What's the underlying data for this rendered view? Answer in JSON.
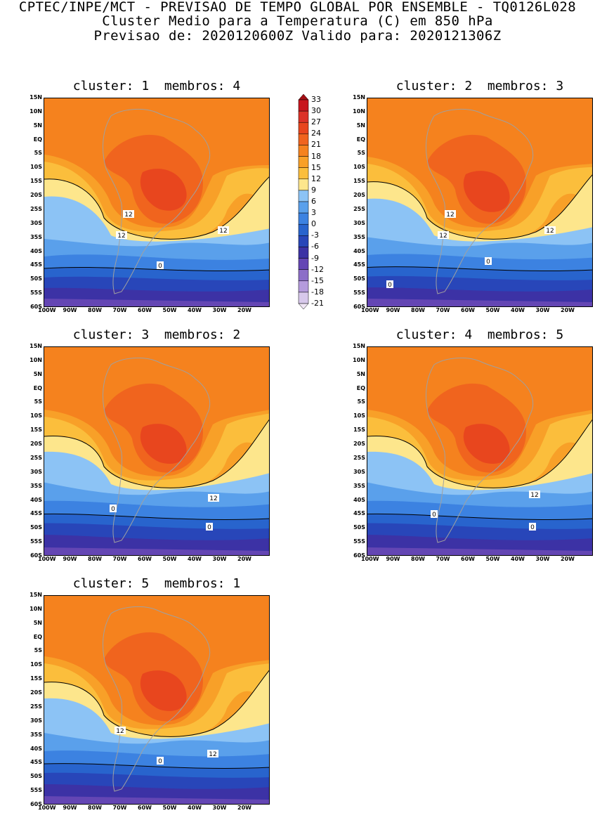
{
  "header": {
    "line1": "CPTEC/INPE/MCT - PREVISAO DE TEMPO GLOBAL POR ENSEMBLE - TQ0126L028",
    "line2": "Cluster Medio para a Temperatura (C) em 850 hPa",
    "line3": "Previsao de: 2020120600Z   Valido para: 2020121306Z"
  },
  "panels": [
    {
      "title": "cluster: 1  membros: 4",
      "contour_labels": [
        "12",
        "12",
        "12",
        "0"
      ]
    },
    {
      "title": "cluster: 2  membros: 3",
      "contour_labels": [
        "12",
        "12",
        "12",
        "0",
        "0"
      ]
    },
    {
      "title": "cluster: 3  membros: 2",
      "contour_labels": [
        "12",
        "0",
        "0"
      ]
    },
    {
      "title": "cluster: 4  membros: 5",
      "contour_labels": [
        "12",
        "0",
        "0"
      ]
    },
    {
      "title": "cluster: 5  membros: 1",
      "contour_labels": [
        "12",
        "12",
        "0"
      ]
    }
  ],
  "lat_labels": [
    "15N",
    "10N",
    "5N",
    "EQ",
    "5S",
    "10S",
    "15S",
    "20S",
    "25S",
    "30S",
    "35S",
    "40S",
    "45S",
    "50S",
    "55S",
    "60S"
  ],
  "lon_labels": [
    "100W",
    "90W",
    "80W",
    "70W",
    "60W",
    "50W",
    "40W",
    "30W",
    "20W"
  ],
  "colorbar": {
    "labels": [
      "33",
      "30",
      "27",
      "24",
      "21",
      "18",
      "15",
      "12",
      "9",
      "6",
      "3",
      "0",
      "-3",
      "-6",
      "-9",
      "-12",
      "-15",
      "-18",
      "-21"
    ],
    "colors": [
      "#a50f15",
      "#c8161d",
      "#dc3228",
      "#e8461e",
      "#f0641e",
      "#f5821e",
      "#f8a028",
      "#fbbe3c",
      "#fde68c",
      "#8cc3f5",
      "#5aa0eb",
      "#3c82e1",
      "#2864cd",
      "#2846b9",
      "#3c32a5",
      "#6446b4",
      "#8c6ec8",
      "#b49bdc",
      "#d7c8eb",
      "#f0e6f5"
    ]
  }
}
